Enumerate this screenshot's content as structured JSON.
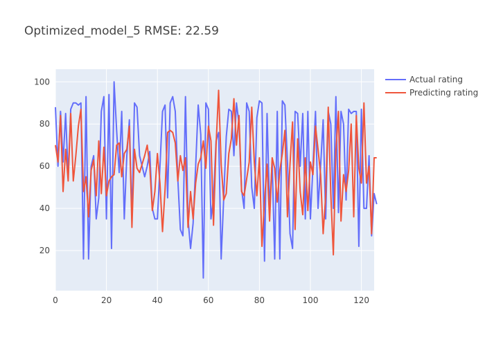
{
  "chart_data": {
    "type": "line",
    "title": "Optimized_model_5 RMSE: 22.59",
    "xlabel": "",
    "ylabel": "",
    "xlim": [
      0,
      125
    ],
    "ylim": [
      1,
      106
    ],
    "x_ticks": [
      0,
      20,
      40,
      60,
      80,
      100,
      120
    ],
    "y_ticks": [
      20,
      40,
      60,
      80,
      100
    ],
    "grid": true,
    "legend_position": "top-right, outside plot",
    "background": "#e5ecf6",
    "series": [
      {
        "name": "Actual rating",
        "color": "#636efa",
        "values": [
          88,
          60,
          86,
          62,
          85,
          55,
          87,
          90,
          90,
          89,
          90,
          16,
          93,
          16,
          60,
          65,
          35,
          45,
          86,
          93,
          35,
          94,
          21,
          100,
          77,
          57,
          86,
          35,
          65,
          82,
          35,
          90,
          88,
          65,
          60,
          55,
          60,
          67,
          40,
          35,
          35,
          60,
          86,
          89,
          45,
          90,
          93,
          86,
          54,
          30,
          27,
          93,
          35,
          21,
          33,
          60,
          89,
          75,
          7,
          90,
          87,
          35,
          45,
          72,
          76,
          16,
          45,
          74,
          87,
          86,
          65,
          90,
          80,
          49,
          40,
          90,
          86,
          50,
          40,
          83,
          91,
          90,
          15,
          85,
          40,
          62,
          16,
          86,
          16,
          91,
          89,
          62,
          28,
          21,
          86,
          85,
          60,
          85,
          35,
          86,
          35,
          60,
          86,
          40,
          60,
          82,
          35,
          86,
          80,
          40,
          93,
          38,
          86,
          80,
          44,
          87,
          85,
          86,
          86,
          22,
          87,
          40,
          40,
          65,
          27,
          47,
          42
        ]
      },
      {
        "name": "Predicting rating",
        "color": "#ef553b",
        "values": [
          70,
          62,
          84,
          48,
          68,
          53,
          85,
          53,
          65,
          79,
          87,
          48,
          55,
          36,
          58,
          63,
          46,
          72,
          47,
          69,
          46,
          53,
          55,
          56,
          70,
          71,
          55,
          66,
          68,
          79,
          31,
          68,
          59,
          57,
          61,
          65,
          70,
          60,
          39,
          48,
          66,
          52,
          29,
          49,
          76,
          77,
          76,
          71,
          53,
          65,
          58,
          64,
          31,
          48,
          35,
          52,
          61,
          64,
          72,
          59,
          79,
          72,
          32,
          70,
          96,
          61,
          44,
          47,
          66,
          73,
          92,
          70,
          84,
          48,
          46,
          54,
          62,
          88,
          62,
          46,
          64,
          22,
          44,
          61,
          34,
          64,
          59,
          43,
          58,
          66,
          77,
          36,
          61,
          81,
          30,
          73,
          48,
          37,
          64,
          39,
          62,
          56,
          79,
          68,
          56,
          28,
          46,
          88,
          47,
          18,
          67,
          86,
          34,
          56,
          48,
          58,
          80,
          36,
          84,
          59,
          52,
          90,
          52,
          60,
          28,
          64,
          64
        ]
      }
    ]
  }
}
